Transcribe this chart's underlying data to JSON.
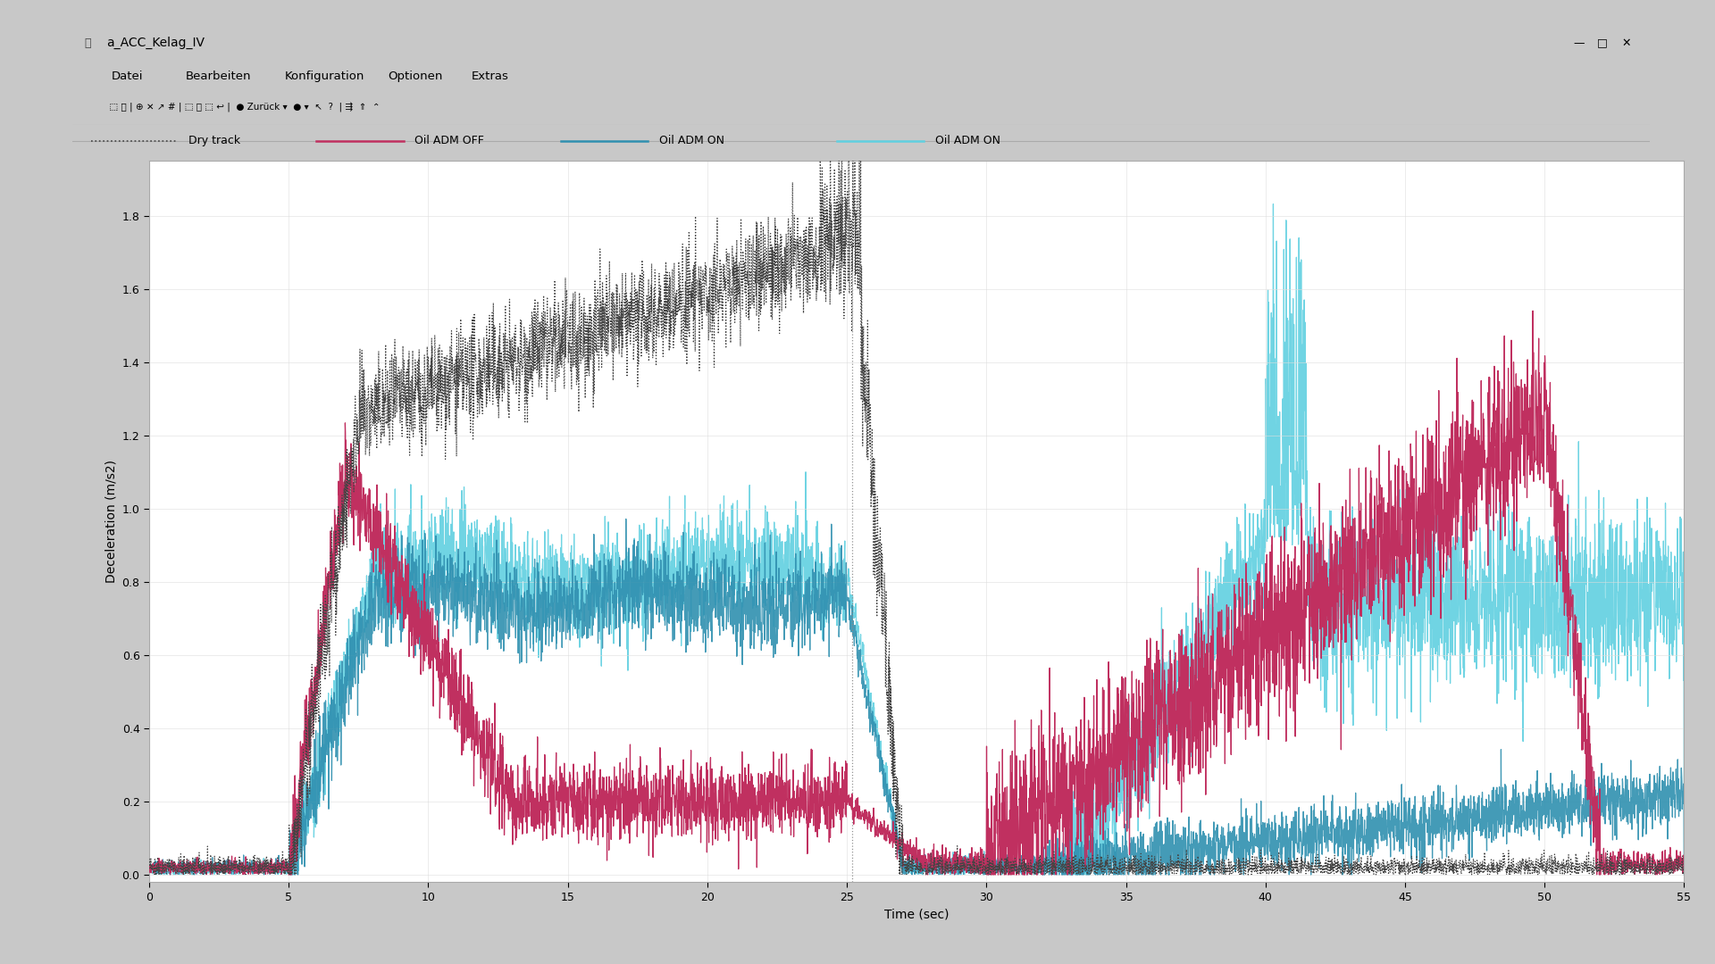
{
  "title": "a_ACC_Kelag_IV",
  "xlabel": "Time (sec)",
  "ylabel": "Deceleration (m/s2)",
  "xlim": [
    0,
    55
  ],
  "ylim": [
    -0.02,
    1.95
  ],
  "xticks": [
    0,
    5,
    10,
    15,
    20,
    25,
    30,
    35,
    40,
    45,
    50,
    55
  ],
  "yticks": [
    0.0,
    0.2,
    0.4,
    0.6,
    0.8,
    1.0,
    1.2,
    1.4,
    1.6,
    1.8
  ],
  "color_dry": "#444444",
  "color_adm_off": "#c03060",
  "color_adm_on_dark": "#3090b0",
  "color_adm_on_cyan": "#60d0e0",
  "bg_outer": "#c8c8c8",
  "bg_window": "#f0f0f0",
  "bg_plot": "#ffffff",
  "vline_x": 25.2,
  "legend_labels": [
    "Dry track",
    "Oil ADM OFF",
    "Oil ADM ON",
    "Oil ADM ON"
  ]
}
